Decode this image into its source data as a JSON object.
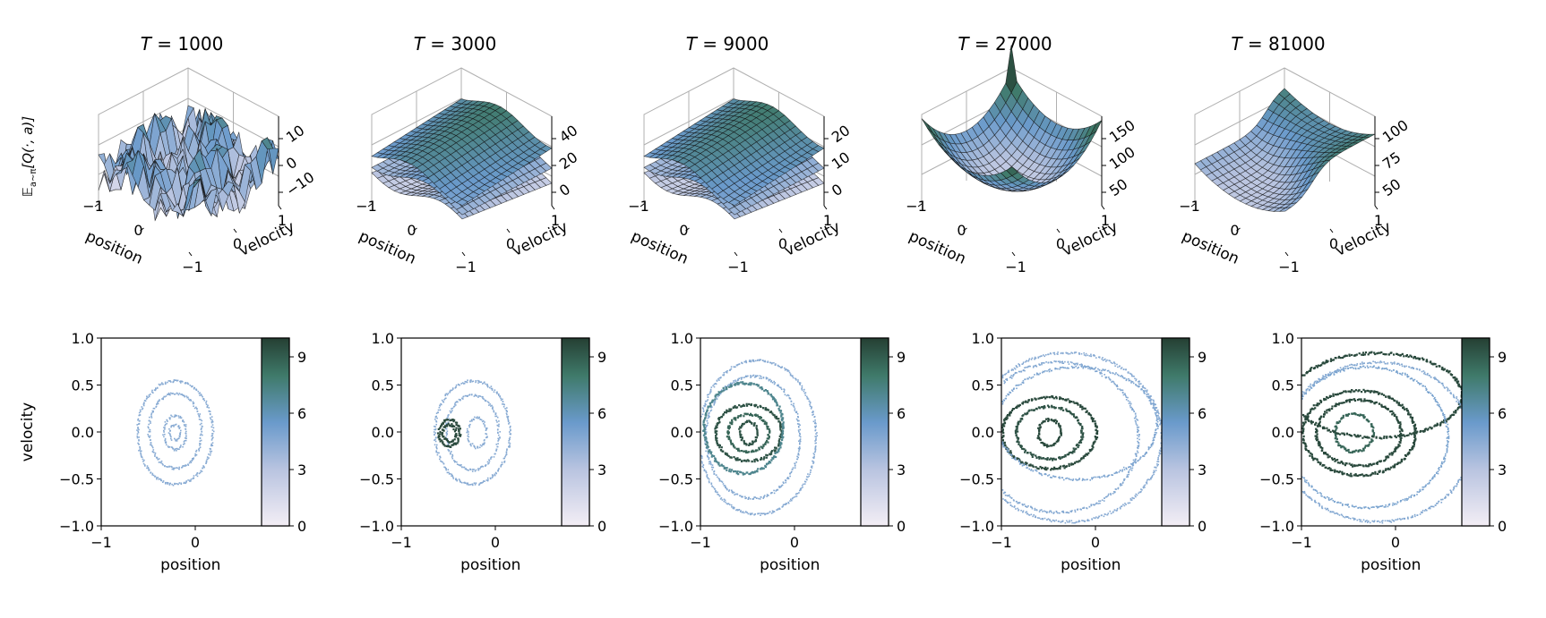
{
  "figure": {
    "ylabel_top": "𝔼",
    "ylabel_top_sub": "a∼π",
    "ylabel_top_expr": "[Q(·, a)]",
    "ylabel_bottom": "velocity"
  },
  "colors": {
    "surface_low": "#eee7f1",
    "surface_mid": "#6a9acb",
    "surface_high": "#2b4a38",
    "scatter_light": "#a7bbdb",
    "scatter_mid": "#6f95b8",
    "scatter_dark": "#3e6b56",
    "grid": "#b0b0b0",
    "edge": "#000000"
  },
  "chart_data": [
    {
      "type": "surface3d",
      "title_var": "T",
      "title_value": "1000",
      "xlabel": "position",
      "ylabel": "velocity",
      "xticks": [
        "−1",
        "0"
      ],
      "yticks": [
        "−1",
        "0",
        "1"
      ],
      "zticks": [
        "10",
        "0",
        "−10"
      ],
      "zlim": [
        -15,
        15
      ],
      "style": "noisy"
    },
    {
      "type": "surface3d",
      "title_var": "T",
      "title_value": "3000",
      "xlabel": "position",
      "ylabel": "velocity",
      "xticks": [
        "−1",
        "0"
      ],
      "yticks": [
        "−1",
        "0",
        "1"
      ],
      "zticks": [
        "40",
        "20",
        "0"
      ],
      "zlim": [
        -5,
        45
      ],
      "style": "layered"
    },
    {
      "type": "surface3d",
      "title_var": "T",
      "title_value": "9000",
      "xlabel": "position",
      "ylabel": "velocity",
      "xticks": [
        "−1",
        "0"
      ],
      "yticks": [
        "−1",
        "0",
        "1"
      ],
      "zticks": [
        "20",
        "10",
        "0"
      ],
      "zlim": [
        -3,
        27
      ],
      "style": "layered"
    },
    {
      "type": "surface3d",
      "title_var": "T",
      "title_value": "27000",
      "xlabel": "position",
      "ylabel": "velocity",
      "xticks": [
        "−1",
        "0"
      ],
      "yticks": [
        "−1",
        "0",
        "1"
      ],
      "zticks": [
        "150",
        "100",
        "50"
      ],
      "zlim": [
        30,
        180
      ],
      "style": "bowl"
    },
    {
      "type": "surface3d",
      "title_var": "T",
      "title_value": "81000",
      "xlabel": "position",
      "ylabel": "velocity",
      "xticks": [
        "−1",
        "0"
      ],
      "yticks": [
        "−1",
        "0",
        "1"
      ],
      "zticks": [
        "100",
        "75",
        "50"
      ],
      "zlim": [
        40,
        110
      ],
      "style": "step"
    },
    {
      "type": "heatmap",
      "xlabel": "position",
      "ylabel": "velocity",
      "xticks": [
        "−1",
        "0"
      ],
      "yticks": [
        "1.0",
        "0.5",
        "0.0",
        "−0.5",
        "−1.0"
      ],
      "xlim": [
        -1,
        1
      ],
      "ylim": [
        -1,
        1
      ],
      "colorbar_ticks": [
        "9",
        "6",
        "3",
        "0"
      ],
      "colorbar_range": [
        0,
        10
      ],
      "rings": [
        {
          "cx": -0.22,
          "cy": 0.0,
          "rx": 0.4,
          "ry": 0.55,
          "weight": 0.3
        },
        {
          "cx": -0.22,
          "cy": 0.02,
          "rx": 0.28,
          "ry": 0.4,
          "weight": 0.3
        },
        {
          "cx": -0.22,
          "cy": 0.0,
          "rx": 0.12,
          "ry": 0.18,
          "weight": 0.3
        },
        {
          "cx": -0.22,
          "cy": 0.0,
          "rx": 0.06,
          "ry": 0.08,
          "weight": 0.3
        }
      ]
    },
    {
      "type": "heatmap",
      "xlabel": "position",
      "ylabel": "",
      "xticks": [
        "−1",
        "0"
      ],
      "yticks": [
        "1.0",
        "0.5",
        "0.0",
        "−0.5",
        "−1.0"
      ],
      "xlim": [
        -1,
        1
      ],
      "ylim": [
        -1,
        1
      ],
      "colorbar_ticks": [
        "9",
        "6",
        "3",
        "0"
      ],
      "colorbar_range": [
        0,
        10
      ],
      "rings": [
        {
          "cx": -0.25,
          "cy": 0.0,
          "rx": 0.4,
          "ry": 0.55,
          "weight": 0.3
        },
        {
          "cx": -0.25,
          "cy": 0.0,
          "rx": 0.28,
          "ry": 0.4,
          "weight": 0.3
        },
        {
          "cx": -0.2,
          "cy": 0.0,
          "rx": 0.1,
          "ry": 0.16,
          "weight": 0.3
        },
        {
          "cx": -0.5,
          "cy": 0.0,
          "rx": 0.11,
          "ry": 0.14,
          "weight": 0.95
        },
        {
          "cx": -0.5,
          "cy": 0.0,
          "rx": 0.07,
          "ry": 0.09,
          "weight": 0.95
        }
      ]
    },
    {
      "type": "heatmap",
      "xlabel": "position",
      "ylabel": "",
      "xticks": [
        "−1",
        "0"
      ],
      "yticks": [
        "1.0",
        "0.5",
        "0.0",
        "−0.5",
        "−1.0"
      ],
      "xlim": [
        -1,
        1
      ],
      "ylim": [
        -1,
        1
      ],
      "colorbar_ticks": [
        "9",
        "6",
        "3",
        "0"
      ],
      "colorbar_range": [
        0,
        10
      ],
      "rings": [
        {
          "cx": -0.4,
          "cy": -0.05,
          "rx": 0.62,
          "ry": 0.82,
          "weight": 0.3
        },
        {
          "cx": -0.45,
          "cy": -0.05,
          "rx": 0.5,
          "ry": 0.65,
          "weight": 0.35
        },
        {
          "cx": -0.5,
          "cy": 0.0,
          "rx": 0.35,
          "ry": 0.3,
          "weight": 0.9
        },
        {
          "cx": -0.5,
          "cy": 0.0,
          "rx": 0.22,
          "ry": 0.2,
          "weight": 0.8
        },
        {
          "cx": -0.5,
          "cy": 0.0,
          "rx": 0.09,
          "ry": 0.12,
          "weight": 0.9
        },
        {
          "cx": -0.55,
          "cy": 0.05,
          "rx": 0.42,
          "ry": 0.48,
          "weight": 0.55
        }
      ]
    },
    {
      "type": "heatmap",
      "xlabel": "position",
      "ylabel": "",
      "xticks": [
        "−1",
        "0"
      ],
      "yticks": [
        "1.0",
        "0.5",
        "0.0",
        "−0.5",
        "−1.0"
      ],
      "xlim": [
        -1,
        1
      ],
      "ylim": [
        -1,
        1
      ],
      "colorbar_ticks": [
        "9",
        "6",
        "3",
        "0"
      ],
      "colorbar_range": [
        0,
        10
      ],
      "rings": [
        {
          "cx": -0.5,
          "cy": 0.0,
          "rx": 0.5,
          "ry": 0.38,
          "weight": 0.95
        },
        {
          "cx": -0.5,
          "cy": 0.0,
          "rx": 0.35,
          "ry": 0.28,
          "weight": 0.9
        },
        {
          "cx": -0.5,
          "cy": 0.0,
          "rx": 0.12,
          "ry": 0.14,
          "weight": 0.95
        },
        {
          "cx": -0.4,
          "cy": -0.05,
          "rx": 0.85,
          "ry": 0.8,
          "weight": 0.35
        },
        {
          "cx": -0.3,
          "cy": -0.05,
          "rx": 1.0,
          "ry": 0.9,
          "weight": 0.3
        },
        {
          "cx": -0.2,
          "cy": 0.1,
          "rx": 0.85,
          "ry": 0.6,
          "weight": 0.4
        }
      ]
    },
    {
      "type": "heatmap",
      "xlabel": "position",
      "ylabel": "",
      "xticks": [
        "−1",
        "0"
      ],
      "yticks": [
        "1.0",
        "0.5",
        "0.0",
        "−0.5",
        "−1.0"
      ],
      "xlim": [
        -1,
        1
      ],
      "ylim": [
        -1,
        1
      ],
      "colorbar_ticks": [
        "9",
        "6",
        "3",
        "0"
      ],
      "colorbar_range": [
        0,
        10
      ],
      "rings": [
        {
          "cx": -0.4,
          "cy": 0.0,
          "rx": 0.6,
          "ry": 0.45,
          "weight": 0.95
        },
        {
          "cx": -0.4,
          "cy": 0.0,
          "rx": 0.45,
          "ry": 0.35,
          "weight": 0.95
        },
        {
          "cx": -0.45,
          "cy": 0.0,
          "rx": 0.2,
          "ry": 0.2,
          "weight": 0.8
        },
        {
          "cx": -0.2,
          "cy": 0.4,
          "rx": 0.9,
          "ry": 0.45,
          "weight": 0.95
        },
        {
          "cx": -0.3,
          "cy": -0.05,
          "rx": 0.85,
          "ry": 0.75,
          "weight": 0.45
        },
        {
          "cx": -0.2,
          "cy": -0.1,
          "rx": 1.0,
          "ry": 0.85,
          "weight": 0.35
        }
      ]
    }
  ]
}
